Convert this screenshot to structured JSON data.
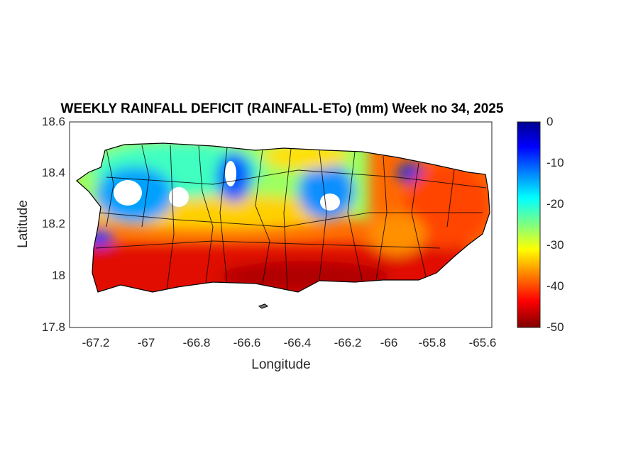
{
  "chart_data": {
    "type": "heatmap",
    "title": "WEEKLY RAINFALL DEFICIT (RAINFALL-ETo) (mm) Week no 34, 2025",
    "xlabel": "Longitude",
    "ylabel": "Latitude",
    "xlim": [
      -67.3,
      -65.57
    ],
    "ylim": [
      17.8,
      18.6
    ],
    "xticks": [
      "-67.2",
      "-67",
      "-66.8",
      "-66.6",
      "-66.4",
      "-66.2",
      "-66",
      "-65.8",
      "-65.6"
    ],
    "yticks": [
      "18.6",
      "18.4",
      "18.2",
      "18",
      "17.8"
    ],
    "colorbar": {
      "colormap": "jet",
      "range": [
        -50,
        0
      ],
      "ticks": [
        "0",
        "-10",
        "-20",
        "-30",
        "-40",
        "-50"
      ]
    },
    "description_regions": {
      "north_west_interior": "-15 to -30",
      "south_coast": "-40 to -50",
      "east": "-35 to -45"
    }
  }
}
